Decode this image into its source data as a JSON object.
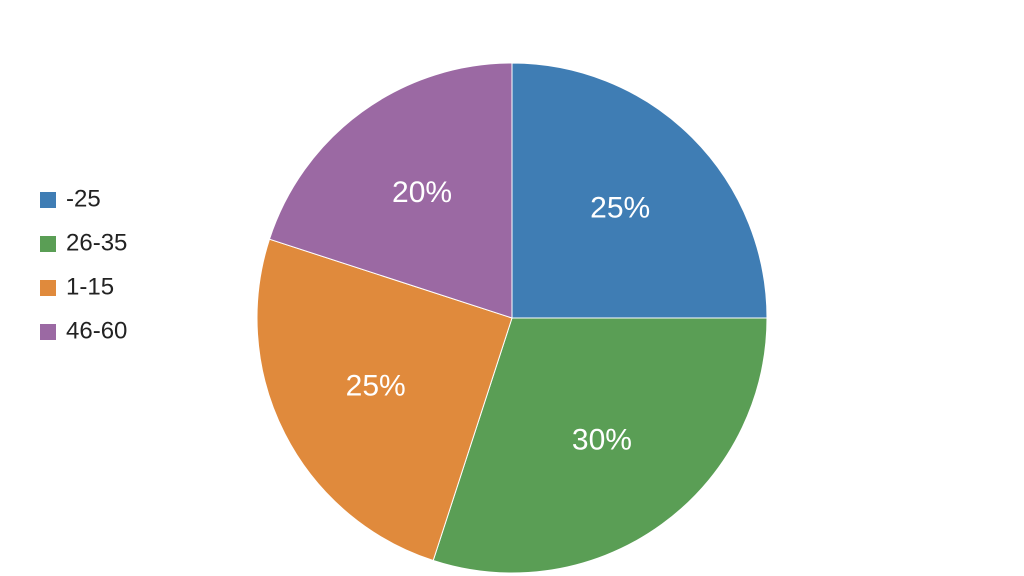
{
  "chart_data": {
    "type": "pie",
    "categories": [
      "-25",
      "26-35",
      "1-15",
      "46-60"
    ],
    "values": [
      25,
      30,
      25,
      20
    ],
    "value_labels": [
      "25%",
      "30%",
      "25%",
      "20%"
    ],
    "colors": [
      "#3f7db4",
      "#5a9e55",
      "#e08a3c",
      "#9b69a3"
    ],
    "legend": "left"
  }
}
